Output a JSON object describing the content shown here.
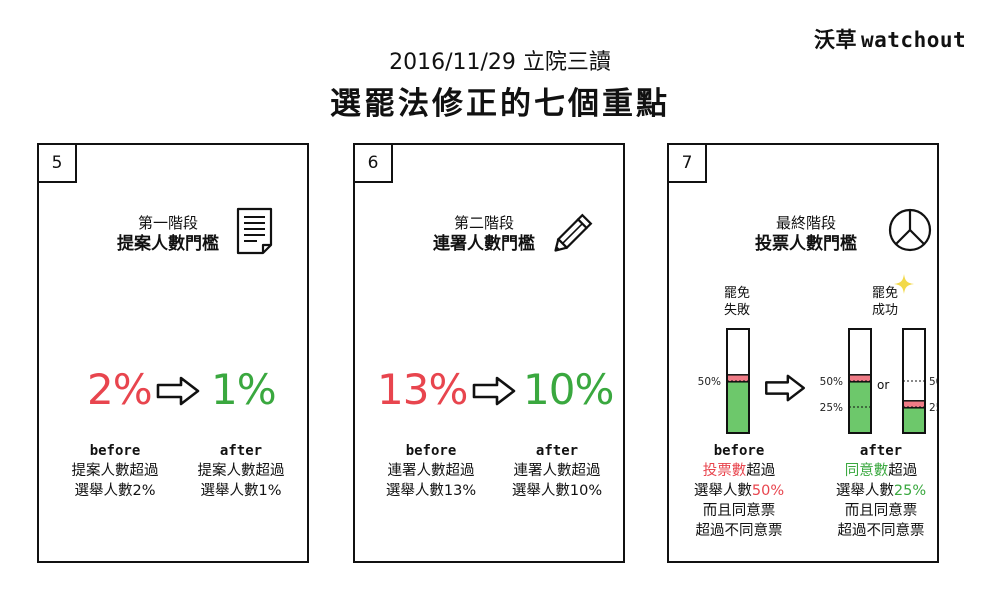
{
  "brand": {
    "han": "沃草",
    "latin": "watchout"
  },
  "header": {
    "date_line": "2016/11/29 立院三讀",
    "title": "選罷法修正的七個重點"
  },
  "cards": [
    {
      "number": "5",
      "stage": "第一階段",
      "title": "提案人數門檻",
      "icon": "document-icon",
      "before_value": "2%",
      "after_value": "1%",
      "before_label": "before",
      "after_label": "after",
      "before_desc": [
        "提案人數超過",
        "選舉人數2%"
      ],
      "after_desc": [
        "提案人數超過",
        "選舉人數1%"
      ]
    },
    {
      "number": "6",
      "stage": "第二階段",
      "title": "連署人數門檻",
      "icon": "pencil-icon",
      "before_value": "13%",
      "after_value": "10%",
      "before_label": "before",
      "after_label": "after",
      "before_desc": [
        "連署人數超過",
        "選舉人數13%"
      ],
      "after_desc": [
        "連署人數超過",
        "選舉人數10%"
      ]
    },
    {
      "number": "7",
      "stage": "最終階段",
      "title": "投票人數門檻",
      "icon": "pie-chart-icon",
      "before_caption": [
        "罷免",
        "失敗"
      ],
      "after_caption": [
        "罷免",
        "成功"
      ],
      "before_threshold": 0.5,
      "after_threshold": 0.25,
      "before_fill": 0.55,
      "after_fill_left": 0.55,
      "after_fill_right": 0.3,
      "tick_50": "50%",
      "tick_25": "25%",
      "or": "or",
      "before_label": "before",
      "after_label": "after",
      "before_desc": {
        "highlight": "投票數",
        "rest1": "超過",
        "line2_pre": "選舉人數",
        "line2_highlight": "50%",
        "line3": "而且同意票",
        "line4": "超過不同意票"
      },
      "after_desc": {
        "highlight": "同意數",
        "rest1": "超過",
        "line2_pre": "選舉人數",
        "line2_highlight": "25%",
        "line3": "而且同意票",
        "line4": "超過不同意票"
      }
    }
  ],
  "colors": {
    "red": "#e8454e",
    "green": "#3aa83f",
    "bar_green": "#6dc86b",
    "bar_red": "#ef7b86",
    "sparkle": "#f2d94a"
  }
}
